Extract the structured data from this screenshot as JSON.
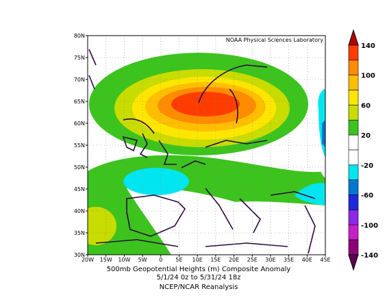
{
  "map": {
    "credit": "NOAA Physical Sciences Laboratory",
    "lat_labels": [
      "80N",
      "75N",
      "70N",
      "65N",
      "60N",
      "55N",
      "50N",
      "45N",
      "40N",
      "35N",
      "30N"
    ],
    "lon_labels": [
      "20W",
      "15W",
      "10W",
      "5W",
      "0",
      "5E",
      "10E",
      "15E",
      "20E",
      "25E",
      "30E",
      "35E",
      "40E",
      "45E"
    ],
    "title_lines": [
      "500mb Geopotential Heights (m)   Composite Anomaly",
      "5/1/24 0z  to 5/31/24 18z",
      "NCEP/NCAR Reanalysis"
    ],
    "colorbar": {
      "labels": [
        "140",
        "100",
        "60",
        "20",
        "-20",
        "-60",
        "-100",
        "-140"
      ],
      "colors": [
        "#b40000",
        "#ff3c00",
        "#ff8c00",
        "#ffbe00",
        "#ffe600",
        "#c8dc00",
        "#3cc31e",
        "#ffffff",
        "#ffffff",
        "#00e6f0",
        "#0078d2",
        "#1e28dc",
        "#8c28e6",
        "#c81ec8",
        "#8c0078",
        "#5a0050"
      ]
    }
  }
}
